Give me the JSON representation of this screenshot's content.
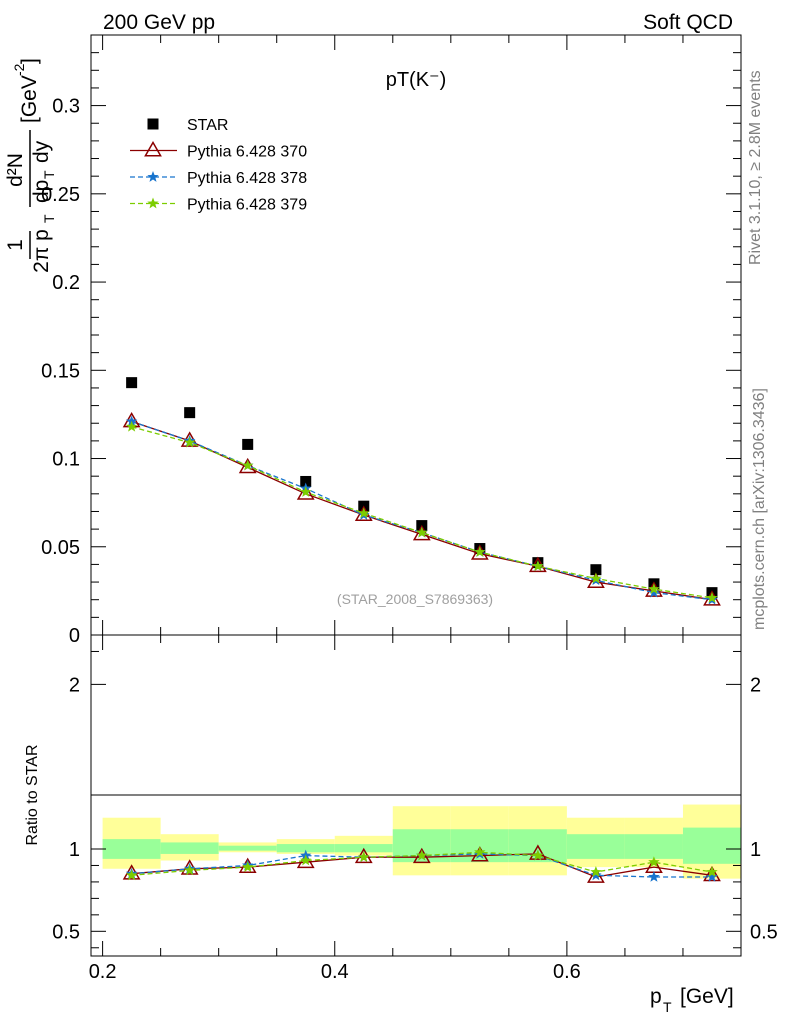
{
  "header": {
    "left": "200 GeV pp",
    "right": "Soft QCD"
  },
  "side_labels": {
    "rivet": "Rivet 3.1.10, ≥ 2.8M events",
    "mcplots": "mcplots.cern.ch [arXiv:1306.3436]"
  },
  "chart_data": [
    {
      "type": "scatter",
      "panel": "main",
      "title": "pT(K⁻)",
      "watermark": "(STAR_2008_S7869363)",
      "ylabel_parts": {
        "frac_num": "1",
        "frac_den": "2π p",
        "den_sub": "T",
        "d2N": "d²N",
        "dpt": "dp",
        "dpt_sub": "T",
        "dy": "dy",
        "unit": "[GeV",
        "unit_exp": "-2",
        "unit_close": "]"
      },
      "ylim": [
        0,
        0.34
      ],
      "y_ticks": [
        "0",
        "0.05",
        "0.1",
        "0.15",
        "0.2",
        "0.25",
        "0.3"
      ],
      "xlim": [
        0.19,
        0.75
      ],
      "legend_position": "top-left",
      "x": [
        0.225,
        0.275,
        0.325,
        0.375,
        0.425,
        0.475,
        0.525,
        0.575,
        0.625,
        0.675,
        0.725
      ],
      "series": [
        {
          "name": "STAR",
          "color": "#000000",
          "marker": "square",
          "values": [
            0.143,
            0.126,
            0.108,
            0.087,
            0.073,
            0.062,
            0.049,
            0.041,
            0.037,
            0.029,
            0.024
          ]
        },
        {
          "name": "Pythia 6.428 370",
          "color": "#8b0000",
          "marker": "triangle",
          "line": "solid",
          "values": [
            0.121,
            0.11,
            0.095,
            0.08,
            0.068,
            0.057,
            0.046,
            0.039,
            0.03,
            0.025,
            0.02
          ]
        },
        {
          "name": "Pythia 6.428 378",
          "color": "#1874cd",
          "marker": "star",
          "line": "dashed",
          "values": [
            0.121,
            0.11,
            0.096,
            0.083,
            0.068,
            0.058,
            0.047,
            0.039,
            0.031,
            0.024,
            0.02
          ]
        },
        {
          "name": "Pythia 6.428 379",
          "color": "#7ccd00",
          "marker": "star",
          "line": "dashed",
          "values": [
            0.118,
            0.109,
            0.096,
            0.081,
            0.069,
            0.058,
            0.047,
            0.039,
            0.032,
            0.026,
            0.021
          ]
        }
      ]
    },
    {
      "type": "line",
      "panel": "ratio",
      "ylabel": "Ratio to STAR",
      "xlabel": "p",
      "xlabel_sub": "T",
      "xlabel_unit": "[GeV]",
      "ylim": [
        0.35,
        2.3
      ],
      "y_ticks": [
        "0.5",
        "1",
        "2"
      ],
      "x_ticks": [
        "0.2",
        "0.4",
        "0.6"
      ],
      "xlim": [
        0.19,
        0.75
      ],
      "bins": [
        [
          0.2,
          0.25
        ],
        [
          0.25,
          0.3
        ],
        [
          0.3,
          0.35
        ],
        [
          0.35,
          0.4
        ],
        [
          0.4,
          0.45
        ],
        [
          0.45,
          0.5
        ],
        [
          0.5,
          0.55
        ],
        [
          0.55,
          0.6
        ],
        [
          0.6,
          0.65
        ],
        [
          0.65,
          0.7
        ],
        [
          0.7,
          0.75
        ]
      ],
      "band_green": [
        [
          0.94,
          1.06
        ],
        [
          0.97,
          1.04
        ],
        [
          0.99,
          1.02
        ],
        [
          0.98,
          1.03
        ],
        [
          0.98,
          1.03
        ],
        [
          0.92,
          1.12
        ],
        [
          0.92,
          1.12
        ],
        [
          0.92,
          1.12
        ],
        [
          0.94,
          1.09
        ],
        [
          0.94,
          1.09
        ],
        [
          0.91,
          1.13
        ]
      ],
      "band_yellow": [
        [
          0.88,
          1.19
        ],
        [
          0.93,
          1.09
        ],
        [
          0.98,
          1.04
        ],
        [
          0.97,
          1.06
        ],
        [
          0.96,
          1.08
        ],
        [
          0.84,
          1.26
        ],
        [
          0.84,
          1.26
        ],
        [
          0.84,
          1.26
        ],
        [
          0.89,
          1.19
        ],
        [
          0.89,
          1.19
        ],
        [
          0.82,
          1.27
        ]
      ],
      "x": [
        0.225,
        0.275,
        0.325,
        0.375,
        0.425,
        0.475,
        0.525,
        0.575,
        0.625,
        0.675,
        0.725
      ],
      "series": [
        {
          "name": "Pythia 6.428 370",
          "color": "#8b0000",
          "marker": "triangle",
          "line": "solid",
          "values": [
            0.85,
            0.88,
            0.89,
            0.92,
            0.95,
            0.95,
            0.96,
            0.97,
            0.83,
            0.89,
            0.84
          ]
        },
        {
          "name": "Pythia 6.428 378",
          "color": "#1874cd",
          "marker": "star",
          "line": "dashed",
          "values": [
            0.85,
            0.88,
            0.9,
            0.96,
            0.95,
            0.96,
            0.97,
            0.96,
            0.84,
            0.83,
            0.83
          ]
        },
        {
          "name": "Pythia 6.428 379",
          "color": "#7ccd00",
          "marker": "star",
          "line": "dashed",
          "values": [
            0.84,
            0.87,
            0.89,
            0.93,
            0.95,
            0.96,
            0.98,
            0.96,
            0.86,
            0.92,
            0.86
          ]
        }
      ]
    }
  ]
}
